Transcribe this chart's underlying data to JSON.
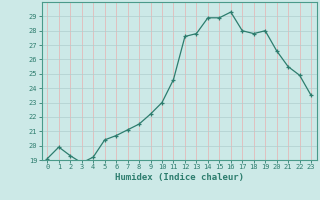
{
  "x": [
    0,
    1,
    2,
    3,
    4,
    5,
    6,
    7,
    8,
    9,
    10,
    11,
    12,
    13,
    14,
    15,
    16,
    17,
    18,
    19,
    20,
    21,
    22,
    23
  ],
  "y": [
    19.1,
    19.9,
    19.3,
    18.8,
    19.2,
    20.4,
    20.7,
    21.1,
    21.5,
    22.2,
    23.0,
    24.6,
    27.6,
    27.8,
    28.9,
    28.9,
    29.3,
    28.0,
    27.8,
    28.0,
    26.6,
    25.5,
    24.9,
    23.5
  ],
  "xlabel": "Humidex (Indice chaleur)",
  "ylim": [
    19,
    30
  ],
  "xlim": [
    -0.5,
    23.5
  ],
  "yticks": [
    19,
    20,
    21,
    22,
    23,
    24,
    25,
    26,
    27,
    28,
    29
  ],
  "xticks": [
    0,
    1,
    2,
    3,
    4,
    5,
    6,
    7,
    8,
    9,
    10,
    11,
    12,
    13,
    14,
    15,
    16,
    17,
    18,
    19,
    20,
    21,
    22,
    23
  ],
  "line_color": "#2d7d6e",
  "marker": "+",
  "bg_color": "#cce9e7",
  "grid_color_v": "#e8b0b0",
  "grid_color_h": "#b0cece",
  "label_color": "#2d7d6e",
  "tick_color": "#2d7d6e",
  "spine_color": "#4a9a8a"
}
